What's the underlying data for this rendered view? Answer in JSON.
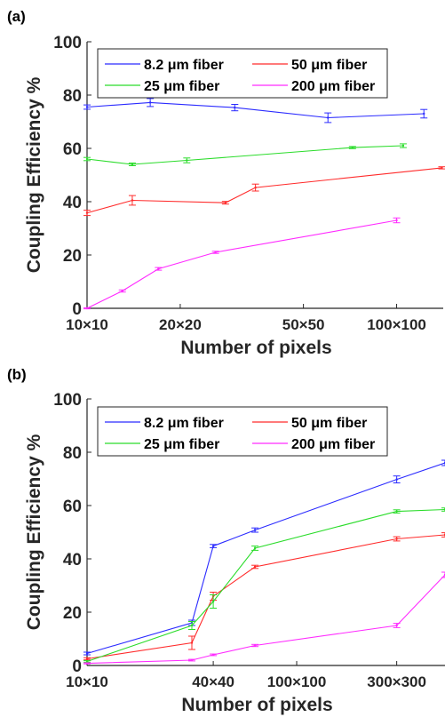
{
  "chart_data": [
    {
      "panel_label": "(a)",
      "type": "line",
      "x_scale": "log",
      "xlabel": "Number of pixels",
      "ylabel": "Coupling Efficiency %",
      "ylim": [
        0,
        100
      ],
      "xlim": [
        100,
        20000
      ],
      "grid": false,
      "legend_position": "top",
      "legend_columns": 2,
      "x_ticks": [
        {
          "value": 100,
          "label": "10×10"
        },
        {
          "value": 400,
          "label": "20×20"
        },
        {
          "value": 2500,
          "label": "50×50"
        },
        {
          "value": 10000,
          "label": "100×100"
        }
      ],
      "y_ticks": [
        0,
        20,
        40,
        60,
        80,
        100
      ],
      "series": [
        {
          "name": "8.2 μm fiber",
          "color": "#2b2bff",
          "x": [
            100,
            256,
            900,
            3600,
            15000
          ],
          "y": [
            75.5,
            77.2,
            75.3,
            71.5,
            73.0
          ],
          "err": [
            0.8,
            1.5,
            1.2,
            1.8,
            1.6
          ]
        },
        {
          "name": "50 μm fiber",
          "color": "#ff2b2b",
          "x": [
            100,
            196,
            784,
            1225,
            19600
          ],
          "y": [
            35.8,
            40.5,
            39.6,
            45.3,
            52.7
          ],
          "err": [
            1.0,
            1.8,
            0.5,
            1.3,
            0.4
          ]
        },
        {
          "name": "25 μm fiber",
          "color": "#2bdc2b",
          "x": [
            100,
            196,
            441,
            5184,
            11025
          ],
          "y": [
            56.0,
            54.0,
            55.5,
            60.3,
            61.0
          ],
          "err": [
            0.6,
            0.5,
            0.9,
            0.4,
            0.7
          ]
        },
        {
          "name": "200 μm fiber",
          "color": "#ff2bff",
          "x": [
            100,
            169,
            289,
            676,
            10000
          ],
          "y": [
            0.0,
            6.5,
            14.8,
            21.0,
            33.0
          ],
          "err": [
            0.2,
            0.4,
            0.5,
            0.4,
            0.9
          ]
        }
      ]
    },
    {
      "panel_label": "(b)",
      "type": "line",
      "x_scale": "log",
      "xlabel": "Number of pixels",
      "ylabel": "Coupling Efficiency %",
      "ylim": [
        0,
        100
      ],
      "xlim": [
        100,
        260000
      ],
      "grid": false,
      "legend_position": "top",
      "legend_columns": 2,
      "x_ticks": [
        {
          "value": 100,
          "label": "10×10"
        },
        {
          "value": 1600,
          "label": "40×40"
        },
        {
          "value": 10000,
          "label": "100×100"
        },
        {
          "value": 90000,
          "label": "300×300"
        }
      ],
      "y_ticks": [
        0,
        20,
        40,
        60,
        80,
        100
      ],
      "series": [
        {
          "name": "8.2 μm fiber",
          "color": "#2b2bff",
          "x": [
            100,
            1000,
            1600,
            4000,
            90000,
            260000
          ],
          "y": [
            4.5,
            16.0,
            44.8,
            50.8,
            69.8,
            76.0
          ],
          "err": [
            0.5,
            1.0,
            0.6,
            0.8,
            1.3,
            1.0
          ]
        },
        {
          "name": "50 μm fiber",
          "color": "#ff2b2b",
          "x": [
            100,
            1000,
            1600,
            4000,
            90000,
            260000
          ],
          "y": [
            2.5,
            8.5,
            26.0,
            37.0,
            47.5,
            49.0
          ],
          "err": [
            0.4,
            2.5,
            1.5,
            0.6,
            0.8,
            0.8
          ]
        },
        {
          "name": "25 μm fiber",
          "color": "#2bdc2b",
          "x": [
            100,
            1000,
            1600,
            4000,
            90000,
            260000
          ],
          "y": [
            1.5,
            15.0,
            24.0,
            44.0,
            57.8,
            58.5
          ],
          "err": [
            0.3,
            1.5,
            2.5,
            0.8,
            0.6,
            0.6
          ]
        },
        {
          "name": "200 μm fiber",
          "color": "#ff2bff",
          "x": [
            100,
            1000,
            1600,
            4000,
            90000,
            260000
          ],
          "y": [
            0.8,
            2.0,
            4.0,
            7.5,
            15.0,
            34.0
          ],
          "err": [
            0.2,
            0.3,
            0.3,
            0.4,
            0.8,
            1.0
          ]
        }
      ]
    }
  ]
}
